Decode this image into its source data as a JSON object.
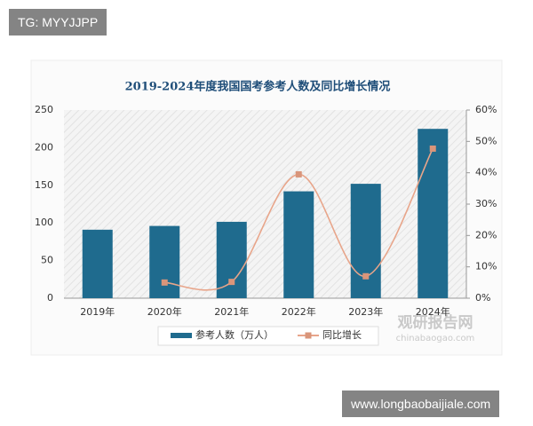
{
  "overlays": {
    "top_left": "TG: MYYJJPP",
    "bottom_right": "www.longbaobaijiale.com"
  },
  "watermark": {
    "name": "观研报告网",
    "site": "chinabaogao.com"
  },
  "chart_data": {
    "type": "bar",
    "title": "2019-2024年度我国国考参考人数及同比增长情况",
    "categories": [
      "2019年",
      "2020年",
      "2021年",
      "2022年",
      "2023年",
      "2024年"
    ],
    "series": [
      {
        "name": "参考人数（万人）",
        "type": "bar",
        "color": "#1f6b8e",
        "values": [
          91,
          96,
          101.5,
          142,
          152,
          225
        ]
      },
      {
        "name": "同比增长",
        "type": "line",
        "color": "#e8a58a",
        "axis": "y2",
        "values": [
          null,
          5,
          5.2,
          39.5,
          7,
          47.7
        ]
      }
    ],
    "ylim": [
      0,
      250
    ],
    "yticks": [
      0,
      50,
      100,
      150,
      200,
      250
    ],
    "y2lim": [
      0,
      60
    ],
    "y2ticks": [
      {
        "value": 0,
        "label": "0%"
      },
      {
        "value": 10,
        "label": "10%"
      },
      {
        "value": 20,
        "label": "20%"
      },
      {
        "value": 30,
        "label": "30%"
      },
      {
        "value": 40,
        "label": "40%"
      },
      {
        "value": 50,
        "label": "50%"
      },
      {
        "value": 60,
        "label": "60%"
      }
    ],
    "legend": "bottom"
  }
}
